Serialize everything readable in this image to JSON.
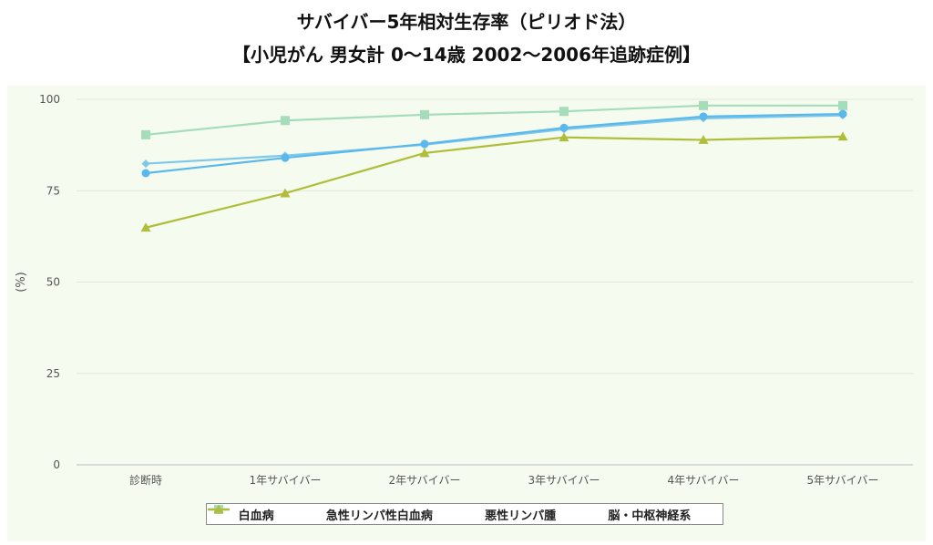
{
  "title_line1": "サバイバー5年相対生存率（ピリオド法）",
  "title_line2": "【小児がん 男女計 0～14歳 2002～2006年追跡症例】",
  "chart_data": {
    "type": "line",
    "categories": [
      "診断時",
      "1年サバイバー",
      "2年サバイバー",
      "3年サバイバー",
      "4年サバイバー",
      "5年サバイバー"
    ],
    "ylabel": "(%)",
    "ylim": [
      0,
      100
    ],
    "yticks": [
      0,
      25,
      50,
      75,
      100
    ],
    "grid": true,
    "legend_position": "bottom",
    "series": [
      {
        "name": "白血病",
        "color": "#5bb8ec",
        "marker": "circle",
        "values": [
          79.8,
          84.0,
          87.8,
          92.2,
          95.3,
          96.0
        ]
      },
      {
        "name": "急性リンパ性白血病",
        "color": "#7ec8ea",
        "marker": "diamond",
        "values": [
          82.4,
          84.6,
          87.6,
          91.8,
          94.8,
          95.6
        ]
      },
      {
        "name": "悪性リンパ腫",
        "color": "#a5ddbb",
        "marker": "square",
        "values": [
          90.3,
          94.2,
          95.8,
          96.7,
          98.3,
          98.3
        ]
      },
      {
        "name": "脳・中枢神経系",
        "color": "#b0bd3a",
        "marker": "triangle",
        "values": [
          64.9,
          74.3,
          85.3,
          89.6,
          88.9,
          89.8
        ]
      }
    ]
  }
}
